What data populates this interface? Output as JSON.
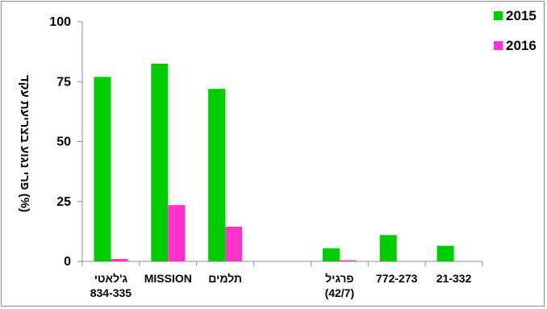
{
  "chart_data": {
    "type": "bar",
    "ylabel": "פרי נגוע בצריעת עקד (%)",
    "ylim": [
      0,
      100
    ],
    "yticks": [
      "0",
      "25",
      "50",
      "75",
      "100"
    ],
    "grid": false,
    "legend_position": "top-right",
    "categories": [
      [
        "ג'לאטי",
        "834-335"
      ],
      [
        "MISSION"
      ],
      [
        "תלמים"
      ],
      [
        ""
      ],
      [
        "פרגיל",
        "(42/7)"
      ],
      [
        "772-273"
      ],
      [
        "21-332"
      ]
    ],
    "series": [
      {
        "name": "2015",
        "color": "#00cc00",
        "values": [
          77,
          82.5,
          72,
          null,
          5.5,
          11,
          6.5
        ]
      },
      {
        "name": "2016",
        "color": "#ff33cc",
        "values": [
          1,
          23.5,
          14.5,
          null,
          0.5,
          null,
          null
        ]
      }
    ]
  }
}
